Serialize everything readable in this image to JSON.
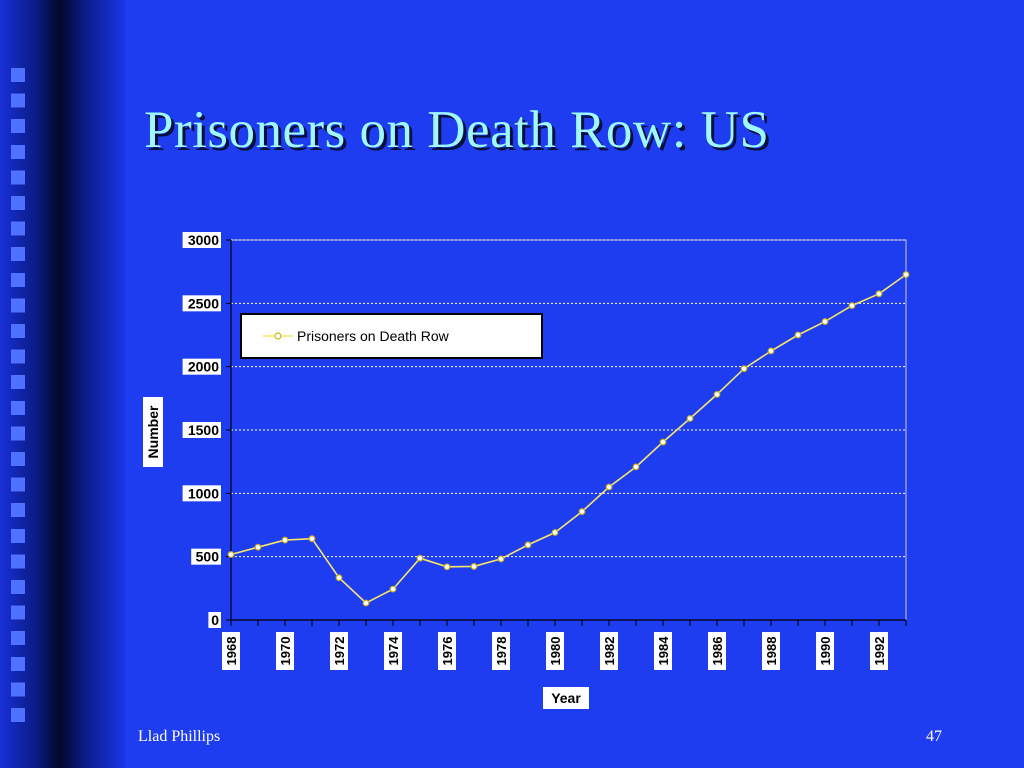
{
  "slide": {
    "title": "Prisoners on Death Row: US",
    "footer_author": "Llad Phillips",
    "page_number": "47"
  },
  "colors": {
    "background": "#1e3cf0",
    "title": "#9ff7ff",
    "series_line": "#f5e66a",
    "plot_border": "#c8c8c8",
    "gridline": "#ffffff"
  },
  "chart_data": {
    "type": "line",
    "xlabel": "Year",
    "ylabel": "Number",
    "ylim": [
      0,
      3000
    ],
    "yticks": [
      0,
      500,
      1000,
      1500,
      2000,
      2500,
      3000
    ],
    "xtick_labels": [
      "1968",
      "1970",
      "1972",
      "1974",
      "1976",
      "1978",
      "1980",
      "1982",
      "1984",
      "1986",
      "1988",
      "1990",
      "1992"
    ],
    "x": [
      1968,
      1969,
      1970,
      1971,
      1972,
      1973,
      1974,
      1975,
      1976,
      1977,
      1978,
      1979,
      1980,
      1981,
      1982,
      1983,
      1984,
      1985,
      1986,
      1987,
      1988,
      1989,
      1990,
      1991,
      1992,
      1993
    ],
    "series": [
      {
        "name": "Prisoners on Death Row",
        "values": [
          517,
          575,
          631,
          642,
          334,
          134,
          244,
          488,
          420,
          423,
          482,
          593,
          691,
          856,
          1050,
          1209,
          1405,
          1591,
          1781,
          1984,
          2124,
          2250,
          2356,
          2482,
          2575,
          2727
        ]
      }
    ],
    "grid": true,
    "legend_position": "upper-left"
  }
}
